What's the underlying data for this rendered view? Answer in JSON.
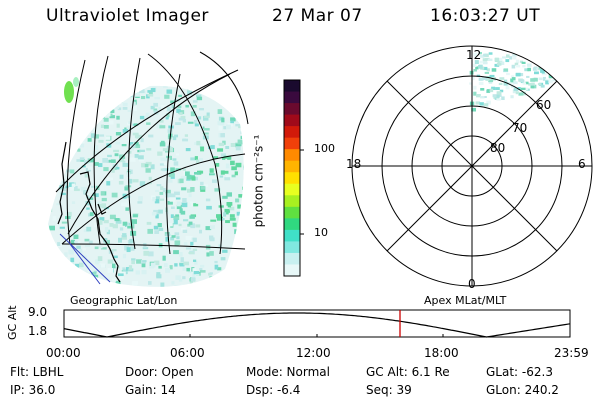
{
  "header": {
    "instrument": "Ultraviolet Imager",
    "date": "27 Mar 07",
    "time": "16:03:27 UT"
  },
  "panels": {
    "left_caption": "Geographic Lat/Lon",
    "right_caption": "Apex MLat/MLT"
  },
  "colorbar": {
    "unit_label": "photon cm⁻²s⁻¹",
    "ticks": [
      "100",
      "10"
    ],
    "colors": [
      "#1a0a2e",
      "#3a0a3e",
      "#6a0a2e",
      "#a00a1a",
      "#d21a0a",
      "#f0400a",
      "#ff8a00",
      "#ffb400",
      "#ffe000",
      "#e8ff20",
      "#a8f020",
      "#60e040",
      "#30d880",
      "#40e0c8",
      "#80e8e0",
      "#c8f0f0",
      "#e8f8f8"
    ]
  },
  "polar": {
    "mlt_labels": {
      "top": "12",
      "left": "18",
      "right": "6",
      "bottom": "0"
    },
    "lat_labels": [
      "60",
      "70",
      "80"
    ]
  },
  "altitude_plot": {
    "ylabel": "GC Alt",
    "yticks": [
      "9.0",
      "1.8"
    ],
    "xticks": [
      "00:00",
      "06:00",
      "12:00",
      "18:00",
      "23:59"
    ],
    "marker_color": "#cc0000"
  },
  "info": {
    "flt": "Flt: LBHL",
    "ip": "IP: 36.0",
    "door": "Door: Open",
    "gain": "Gain: 14",
    "mode": "Mode: Normal",
    "dsp": "Dsp:    -6.4",
    "gcalt": "GC Alt: 6.1 Re",
    "seq": "Seq: 39",
    "glat": "GLat: -62.3",
    "glon": "GLon: 240.2"
  }
}
